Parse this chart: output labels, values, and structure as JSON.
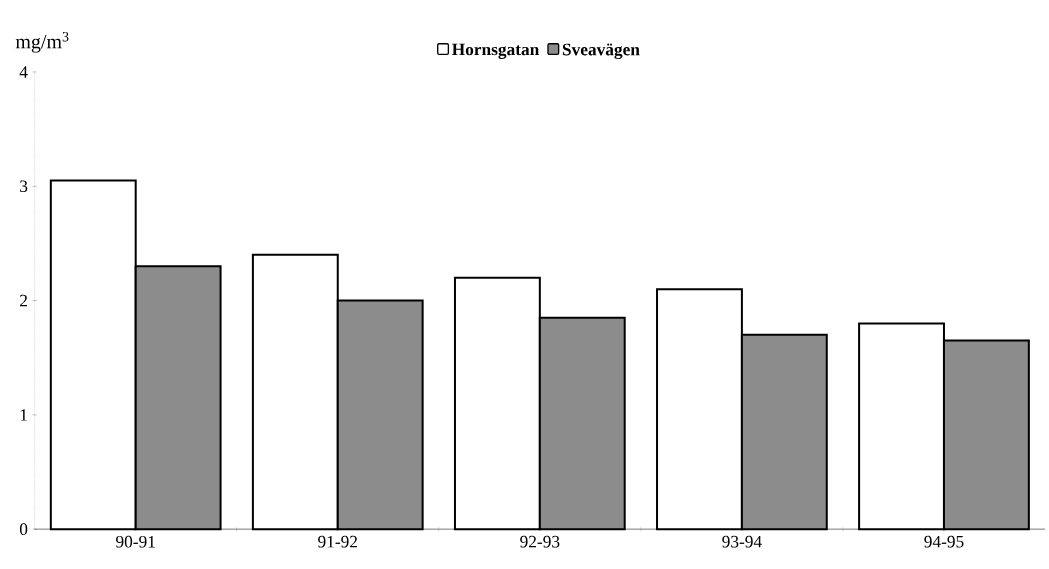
{
  "chart_data": {
    "type": "bar",
    "ylabel": "mg/m$^{3}$",
    "categories": [
      "90-91",
      "91-92",
      "92-93",
      "93-94",
      "94-95"
    ],
    "series": [
      {
        "name": "Hornsgatan",
        "color": "#ffffff",
        "values": [
          3.05,
          2.4,
          2.2,
          2.1,
          1.8
        ]
      },
      {
        "name": "Sveavägen",
        "color": "#8c8c8c",
        "values": [
          2.3,
          2.0,
          1.85,
          1.7,
          1.65
        ]
      }
    ],
    "ylim": [
      0,
      4
    ],
    "yticks": [
      0,
      1,
      2,
      3,
      4
    ],
    "legend": "top",
    "grid": false
  }
}
